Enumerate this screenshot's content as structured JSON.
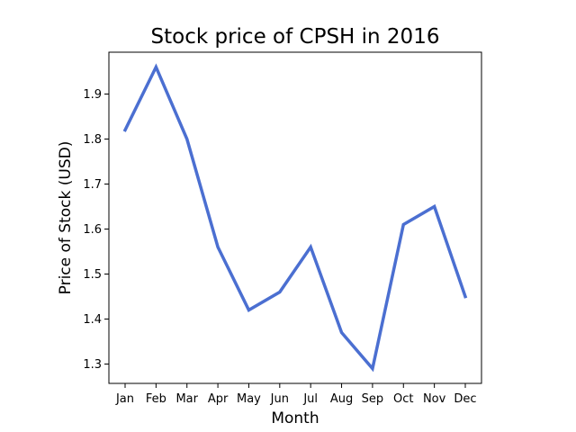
{
  "chart_data": {
    "type": "line",
    "title": "Stock price of CPSH in 2016",
    "xlabel": "Month",
    "ylabel": "Price of Stock (USD)",
    "categories": [
      "Jan",
      "Feb",
      "Mar",
      "Apr",
      "May",
      "Jun",
      "Jul",
      "Aug",
      "Sep",
      "Oct",
      "Nov",
      "Dec"
    ],
    "series": [
      {
        "name": "CPSH",
        "values": [
          1.82,
          1.96,
          1.8,
          1.56,
          1.42,
          1.46,
          1.56,
          1.37,
          1.29,
          1.61,
          1.65,
          1.45
        ],
        "color": "#4b6fd1"
      }
    ],
    "ylim": [
      1.257,
      1.993
    ],
    "yticks": [
      1.3,
      1.4,
      1.5,
      1.6,
      1.7,
      1.8,
      1.9
    ],
    "ytick_labels": [
      "1.3",
      "1.4",
      "1.5",
      "1.6",
      "1.7",
      "1.8",
      "1.9"
    ],
    "grid": false,
    "legend": "none"
  }
}
